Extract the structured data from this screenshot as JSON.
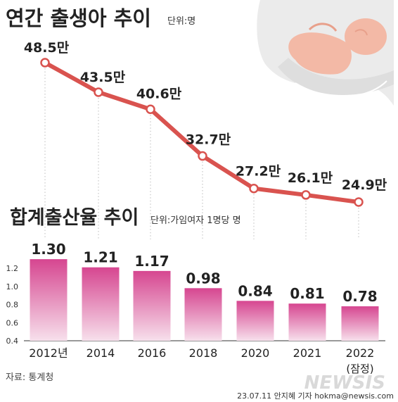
{
  "chart_data": [
    {
      "type": "line",
      "title": "연간 출생아 추이",
      "unit_label": "단위:명",
      "x": [
        "2012년",
        "2014",
        "2016",
        "2018",
        "2020",
        "2021",
        "2022"
      ],
      "values": [
        48.5,
        43.5,
        40.6,
        32.7,
        27.2,
        26.1,
        24.9
      ],
      "data_labels": [
        "48.5만",
        "43.5만",
        "40.6만",
        "32.7만",
        "27.2만",
        "26.1만",
        "24.9만"
      ],
      "series_color": "#d9534f",
      "grid": false
    },
    {
      "type": "bar",
      "title": "합계출산율 추이",
      "unit_label": "단위:가임여자 1명당 명",
      "categories": [
        "2012년",
        "2014",
        "2016",
        "2018",
        "2020",
        "2021",
        "2022"
      ],
      "category_note": "(잠정)",
      "values": [
        1.3,
        1.21,
        1.17,
        0.98,
        0.84,
        0.81,
        0.78
      ],
      "data_labels": [
        "1.30",
        "1.21",
        "1.17",
        "0.98",
        "0.84",
        "0.81",
        "0.78"
      ],
      "yticks": [
        "1.2",
        "1.0",
        "0.8",
        "0.6",
        "0.4"
      ],
      "ylim": [
        0.4,
        1.35
      ],
      "bar_color_top": "#d9478f",
      "bar_color_bottom": "#f6dbe9",
      "grid": false
    }
  ],
  "source": "자료: 통계청",
  "credit": "23.07.11  안지혜 기자  hokma@newsis.com",
  "watermark": "NEWSIS"
}
